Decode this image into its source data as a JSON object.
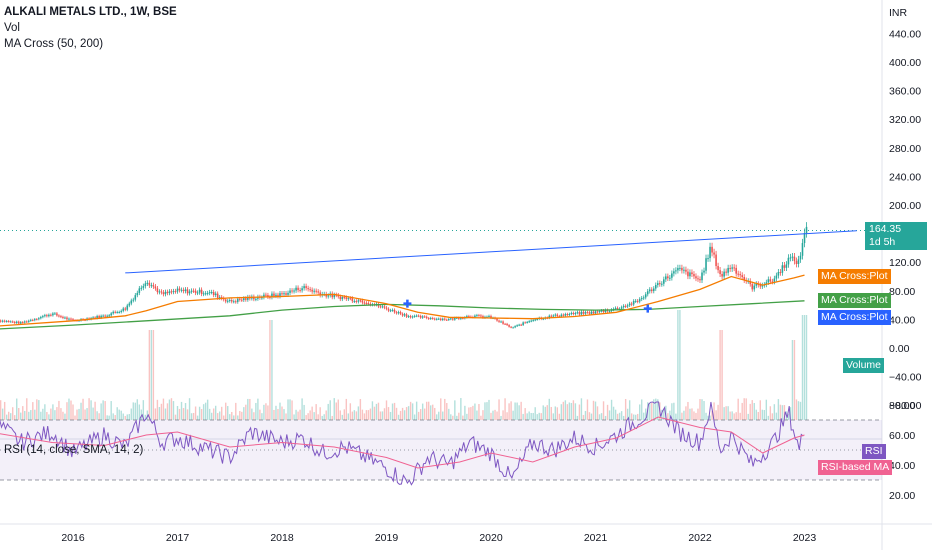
{
  "legend": {
    "title": "ALKALI METALS LTD., 1W, BSE",
    "vol": "Vol",
    "ma": "MA Cross (50, 200)",
    "rsi": "RSI (14, close, SMA, 14, 2)"
  },
  "price_axis": {
    "currency": "INR",
    "ticks": [
      "440.00",
      "400.00",
      "360.00",
      "320.00",
      "280.00",
      "240.00",
      "200.00",
      "120.00",
      "80.00",
      "40.00",
      "0.00",
      "−40.00",
      "−80.00"
    ]
  },
  "rsi_axis": {
    "ticks": [
      "80.00",
      "60.00",
      "40.00",
      "20.00"
    ]
  },
  "last_price": {
    "value": "164.35",
    "countdown": "1d 5h"
  },
  "tags": {
    "ma_short": "MA Cross:Plot",
    "ma_long": "MA Cross:Plot",
    "ma_cross": "MA Cross:Plot",
    "volume": "Volume",
    "rsi": "RSI",
    "rsi_ma": "RSI-based MA"
  },
  "colors": {
    "up": "#26a69a",
    "down": "#ef5350",
    "ma_short": "#f57c00",
    "ma_long": "#43a047",
    "cross": "#2962ff",
    "trendline": "#2962ff",
    "rsi": "#7e57c2",
    "rsi_ma": "#f06292"
  },
  "chart_data": {
    "type": "line",
    "x_ticks": [
      "2016",
      "2017",
      "2018",
      "2019",
      "2020",
      "2021",
      "2022",
      "2023"
    ],
    "price_close": [
      [
        2015.2,
        40
      ],
      [
        2015.5,
        35
      ],
      [
        2015.8,
        48
      ],
      [
        2016.0,
        38
      ],
      [
        2016.3,
        45
      ],
      [
        2016.5,
        55
      ],
      [
        2016.7,
        95
      ],
      [
        2016.85,
        75
      ],
      [
        2017.0,
        80
      ],
      [
        2017.3,
        78
      ],
      [
        2017.5,
        65
      ],
      [
        2017.7,
        70
      ],
      [
        2018.0,
        75
      ],
      [
        2018.2,
        85
      ],
      [
        2018.4,
        75
      ],
      [
        2018.6,
        70
      ],
      [
        2018.8,
        65
      ],
      [
        2019.0,
        55
      ],
      [
        2019.2,
        45
      ],
      [
        2019.4,
        42
      ],
      [
        2019.6,
        40
      ],
      [
        2019.8,
        45
      ],
      [
        2020.0,
        43
      ],
      [
        2020.2,
        28
      ],
      [
        2020.4,
        40
      ],
      [
        2020.6,
        45
      ],
      [
        2020.8,
        48
      ],
      [
        2021.0,
        50
      ],
      [
        2021.2,
        55
      ],
      [
        2021.4,
        65
      ],
      [
        2021.6,
        90
      ],
      [
        2021.8,
        110
      ],
      [
        2022.0,
        95
      ],
      [
        2022.1,
        140
      ],
      [
        2022.2,
        100
      ],
      [
        2022.3,
        115
      ],
      [
        2022.5,
        85
      ],
      [
        2022.7,
        95
      ],
      [
        2022.85,
        125
      ],
      [
        2022.95,
        120
      ],
      [
        2023.0,
        164.35
      ]
    ],
    "ma_short": [
      [
        2015.2,
        30
      ],
      [
        2016.0,
        38
      ],
      [
        2016.5,
        45
      ],
      [
        2016.7,
        52
      ],
      [
        2017.0,
        65
      ],
      [
        2017.5,
        70
      ],
      [
        2018.0,
        72
      ],
      [
        2018.5,
        75
      ],
      [
        2019.0,
        62
      ],
      [
        2019.3,
        50
      ],
      [
        2019.6,
        43
      ],
      [
        2020.0,
        42
      ],
      [
        2020.4,
        41
      ],
      [
        2020.8,
        44
      ],
      [
        2021.2,
        50
      ],
      [
        2021.6,
        65
      ],
      [
        2022.0,
        82
      ],
      [
        2022.3,
        100
      ],
      [
        2022.6,
        88
      ],
      [
        2022.9,
        98
      ],
      [
        2023.0,
        102
      ]
    ],
    "ma_long": [
      [
        2015.2,
        26
      ],
      [
        2016.0,
        32
      ],
      [
        2016.7,
        38
      ],
      [
        2017.5,
        45
      ],
      [
        2018.0,
        53
      ],
      [
        2018.5,
        58
      ],
      [
        2019.0,
        61
      ],
      [
        2019.5,
        59
      ],
      [
        2020.0,
        56
      ],
      [
        2020.5,
        54
      ],
      [
        2021.0,
        53
      ],
      [
        2021.5,
        54
      ],
      [
        2022.0,
        58
      ],
      [
        2022.5,
        62
      ],
      [
        2023.0,
        66
      ]
    ],
    "trendline": [
      [
        2016.5,
        105
      ],
      [
        2023.5,
        164
      ]
    ],
    "ma_cross_points": [
      [
        2015.25,
        28
      ],
      [
        2019.2,
        62
      ],
      [
        2021.5,
        55
      ]
    ],
    "rsi": [
      [
        2015.2,
        72
      ],
      [
        2015.5,
        55
      ],
      [
        2015.8,
        62
      ],
      [
        2016.0,
        48
      ],
      [
        2016.3,
        60
      ],
      [
        2016.5,
        52
      ],
      [
        2016.7,
        75
      ],
      [
        2016.85,
        55
      ],
      [
        2017.0,
        58
      ],
      [
        2017.3,
        50
      ],
      [
        2017.5,
        45
      ],
      [
        2017.7,
        62
      ],
      [
        2018.0,
        55
      ],
      [
        2018.2,
        58
      ],
      [
        2018.4,
        48
      ],
      [
        2018.6,
        52
      ],
      [
        2018.8,
        45
      ],
      [
        2019.0,
        38
      ],
      [
        2019.2,
        28
      ],
      [
        2019.4,
        45
      ],
      [
        2019.6,
        40
      ],
      [
        2019.8,
        55
      ],
      [
        2020.0,
        48
      ],
      [
        2020.2,
        30
      ],
      [
        2020.4,
        55
      ],
      [
        2020.6,
        50
      ],
      [
        2020.8,
        58
      ],
      [
        2021.0,
        52
      ],
      [
        2021.2,
        60
      ],
      [
        2021.4,
        70
      ],
      [
        2021.6,
        80
      ],
      [
        2021.8,
        62
      ],
      [
        2022.0,
        55
      ],
      [
        2022.1,
        78
      ],
      [
        2022.2,
        50
      ],
      [
        2022.3,
        60
      ],
      [
        2022.5,
        40
      ],
      [
        2022.7,
        55
      ],
      [
        2022.85,
        75
      ],
      [
        2022.95,
        50
      ],
      [
        2023.0,
        65
      ]
    ],
    "rsi_ma": [
      [
        2015.2,
        62
      ],
      [
        2015.8,
        55
      ],
      [
        2016.3,
        53
      ],
      [
        2016.7,
        60
      ],
      [
        2017.0,
        62
      ],
      [
        2017.5,
        52
      ],
      [
        2018.0,
        55
      ],
      [
        2018.5,
        52
      ],
      [
        2019.0,
        45
      ],
      [
        2019.3,
        38
      ],
      [
        2019.7,
        42
      ],
      [
        2020.0,
        48
      ],
      [
        2020.4,
        42
      ],
      [
        2020.8,
        52
      ],
      [
        2021.2,
        58
      ],
      [
        2021.6,
        72
      ],
      [
        2022.0,
        65
      ],
      [
        2022.3,
        62
      ],
      [
        2022.6,
        48
      ],
      [
        2022.9,
        58
      ],
      [
        2023.0,
        60
      ]
    ],
    "rsi_bands": [
      70,
      50,
      30
    ],
    "volume_spikes": [
      [
        2016.75,
        0.5
      ],
      [
        2017.9,
        0.6
      ],
      [
        2021.8,
        0.7
      ],
      [
        2022.2,
        0.5
      ],
      [
        2022.9,
        0.4
      ],
      [
        2023.0,
        0.65
      ]
    ]
  }
}
